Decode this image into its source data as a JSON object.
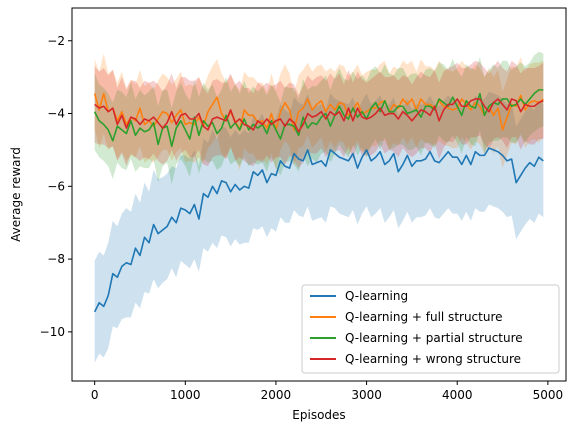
{
  "chart_data": {
    "type": "line",
    "title": "",
    "xlabel": "Episodes",
    "ylabel": "Average reward",
    "xlim": [
      -250,
      5200
    ],
    "ylim": [
      -11.35,
      -1.1
    ],
    "xticks": [
      0,
      1000,
      2000,
      3000,
      4000,
      5000
    ],
    "xtick_labels": [
      "0",
      "1000",
      "2000",
      "3000",
      "4000",
      "5000"
    ],
    "yticks": [
      -10,
      -8,
      -6,
      -4,
      -2
    ],
    "ytick_labels": [
      "−10",
      "−8",
      "−6",
      "−4",
      "−2"
    ],
    "grid": false,
    "legend_position": "lower-right",
    "x": [
      0,
      50,
      100,
      150,
      200,
      250,
      300,
      350,
      400,
      450,
      500,
      550,
      600,
      650,
      700,
      750,
      800,
      850,
      900,
      950,
      1000,
      1050,
      1100,
      1150,
      1200,
      1250,
      1300,
      1350,
      1400,
      1450,
      1500,
      1550,
      1600,
      1650,
      1700,
      1750,
      1800,
      1850,
      1900,
      1950,
      2000,
      2050,
      2100,
      2150,
      2200,
      2250,
      2300,
      2350,
      2400,
      2450,
      2500,
      2550,
      2600,
      2650,
      2700,
      2750,
      2800,
      2850,
      2900,
      2950,
      3000,
      3050,
      3100,
      3150,
      3200,
      3250,
      3300,
      3350,
      3400,
      3450,
      3500,
      3550,
      3600,
      3650,
      3700,
      3750,
      3800,
      3850,
      3900,
      3950,
      4000,
      4050,
      4100,
      4150,
      4200,
      4250,
      4300,
      4350,
      4400,
      4450,
      4500,
      4550,
      4600,
      4650,
      4700,
      4750,
      4800,
      4850,
      4900,
      4950
    ],
    "series": [
      {
        "name": "Q-learning",
        "color": "#1f77b4",
        "values": [
          -9.45,
          -9.2,
          -9.3,
          -9.0,
          -8.4,
          -8.5,
          -8.2,
          -8.1,
          -8.15,
          -7.7,
          -7.9,
          -7.4,
          -7.55,
          -7.05,
          -7.3,
          -7.2,
          -7.1,
          -6.85,
          -7.0,
          -6.6,
          -6.65,
          -6.75,
          -6.5,
          -6.9,
          -6.2,
          -6.3,
          -6.0,
          -6.2,
          -5.85,
          -5.9,
          -6.15,
          -5.95,
          -6.1,
          -6.0,
          -6.05,
          -5.6,
          -5.7,
          -5.55,
          -5.9,
          -5.65,
          -5.7,
          -5.3,
          -5.45,
          -5.5,
          -5.1,
          -5.25,
          -5.3,
          -5.0,
          -5.4,
          -5.35,
          -5.3,
          -5.45,
          -5.0,
          -5.1,
          -5.2,
          -5.25,
          -5.3,
          -5.1,
          -5.5,
          -5.2,
          -5.0,
          -5.3,
          -5.2,
          -5.05,
          -5.4,
          -5.3,
          -5.1,
          -5.6,
          -5.4,
          -5.15,
          -5.45,
          -5.3,
          -5.3,
          -5.25,
          -5.05,
          -5.3,
          -5.35,
          -5.2,
          -5.05,
          -5.2,
          -5.2,
          -5.4,
          -5.15,
          -5.4,
          -5.05,
          -5.15,
          -5.15,
          -4.95,
          -5.0,
          -5.05,
          -5.15,
          -5.3,
          -5.25,
          -5.9,
          -5.7,
          -5.5,
          -5.35,
          -5.45,
          -5.2,
          -5.3
        ],
        "band": [
          1.4,
          1.4,
          1.4,
          1.45,
          1.45,
          1.4,
          1.45,
          1.5,
          1.45,
          1.5,
          1.45,
          1.5,
          1.4,
          1.5,
          1.5,
          1.45,
          1.45,
          1.4,
          1.5,
          1.45,
          1.5,
          1.5,
          1.5,
          1.45,
          1.5,
          1.5,
          1.55,
          1.5,
          1.5,
          1.5,
          1.5,
          1.5,
          1.5,
          1.55,
          1.5,
          1.55,
          1.5,
          1.55,
          1.5,
          1.5,
          1.55,
          1.55,
          1.55,
          1.5,
          1.55,
          1.55,
          1.55,
          1.55,
          1.55,
          1.55,
          1.55,
          1.55,
          1.55,
          1.5,
          1.55,
          1.55,
          1.55,
          1.55,
          1.55,
          1.55,
          1.55,
          1.55,
          1.55,
          1.55,
          1.6,
          1.55,
          1.55,
          1.55,
          1.55,
          1.55,
          1.55,
          1.55,
          1.55,
          1.55,
          1.55,
          1.55,
          1.55,
          1.55,
          1.55,
          1.55,
          1.55,
          1.55,
          1.55,
          1.55,
          1.55,
          1.55,
          1.55,
          1.55,
          1.55,
          1.55,
          1.55,
          1.55,
          1.55,
          1.55,
          1.55,
          1.55,
          1.55,
          1.55,
          1.55,
          1.55
        ]
      },
      {
        "name": "Q-learning + full structure",
        "color": "#ff7f0e",
        "values": [
          -3.45,
          -3.9,
          -3.45,
          -3.95,
          -3.85,
          -4.2,
          -3.95,
          -4.3,
          -4.1,
          -4.2,
          -3.85,
          -4.3,
          -4.2,
          -4.35,
          -4.15,
          -3.95,
          -4.0,
          -4.25,
          -4.05,
          -3.9,
          -4.3,
          -4.25,
          -4.3,
          -4.1,
          -4.35,
          -3.95,
          -3.75,
          -3.55,
          -4.0,
          -4.2,
          -3.95,
          -4.2,
          -4.45,
          -3.9,
          -4.05,
          -4.05,
          -4.25,
          -4.2,
          -4.4,
          -4.0,
          -4.45,
          -3.95,
          -3.7,
          -3.9,
          -4.45,
          -3.95,
          -3.85,
          -3.6,
          -3.9,
          -3.75,
          -3.65,
          -3.95,
          -3.75,
          -3.9,
          -3.7,
          -3.75,
          -4.05,
          -3.9,
          -3.7,
          -4.0,
          -3.95,
          -3.85,
          -3.85,
          -3.7,
          -3.65,
          -3.95,
          -3.75,
          -3.85,
          -3.6,
          -3.75,
          -3.6,
          -3.9,
          -3.6,
          -3.75,
          -3.75,
          -3.85,
          -3.65,
          -3.8,
          -3.85,
          -3.9,
          -3.85,
          -3.6,
          -3.75,
          -3.9,
          -3.7,
          -3.8,
          -4.05,
          -3.8,
          -4.05,
          -3.85,
          -4.45,
          -4.1,
          -3.75,
          -3.8,
          -3.5,
          -3.9,
          -3.7,
          -3.65,
          -3.7,
          -3.6
        ],
        "band": [
          0.95,
          1.05,
          1.1,
          1.05,
          1.05,
          1.05,
          1.1,
          1.0,
          1.05,
          1.0,
          1.05,
          1.05,
          1.05,
          1.0,
          1.05,
          1.05,
          1.0,
          1.05,
          1.0,
          1.05,
          1.05,
          1.05,
          1.05,
          1.1,
          1.05,
          1.0,
          1.05,
          1.05,
          1.1,
          1.05,
          1.0,
          1.0,
          1.1,
          1.05,
          1.05,
          1.05,
          1.1,
          1.05,
          1.0,
          1.1,
          1.1,
          1.05,
          1.05,
          1.0,
          1.0,
          1.0,
          1.05,
          1.0,
          1.05,
          1.05,
          1.0,
          1.1,
          1.0,
          1.05,
          1.05,
          1.05,
          1.1,
          1.05,
          1.05,
          1.05,
          1.1,
          1.05,
          1.05,
          1.05,
          1.1,
          1.05,
          1.05,
          1.05,
          1.05,
          1.1,
          1.05,
          1.05,
          1.1,
          1.05,
          1.05,
          1.05,
          1.1,
          1.05,
          1.05,
          1.05,
          1.1,
          1.05,
          1.05,
          1.1,
          1.05,
          1.05,
          1.05,
          1.05,
          1.05,
          1.05,
          1.05,
          1.05,
          1.05,
          1.05,
          1.05,
          1.05,
          1.05,
          1.05,
          1.1,
          1.05
        ]
      },
      {
        "name": "Q-learning + partial structure",
        "color": "#2ca02c",
        "values": [
          -3.95,
          -4.2,
          -4.3,
          -4.45,
          -4.75,
          -4.35,
          -4.45,
          -4.55,
          -4.2,
          -4.6,
          -4.4,
          -4.5,
          -4.45,
          -4.25,
          -4.85,
          -4.4,
          -4.35,
          -4.9,
          -4.4,
          -4.2,
          -4.45,
          -4.7,
          -4.1,
          -4.6,
          -4.2,
          -4.35,
          -4.25,
          -4.55,
          -4.4,
          -4.05,
          -4.4,
          -4.25,
          -4.45,
          -4.15,
          -4.45,
          -4.3,
          -4.4,
          -4.3,
          -4.55,
          -4.2,
          -4.45,
          -4.7,
          -4.3,
          -4.3,
          -4.35,
          -4.6,
          -4.1,
          -4.4,
          -4.25,
          -4.3,
          -4.1,
          -4.0,
          -4.35,
          -4.05,
          -3.8,
          -4.05,
          -4.15,
          -3.85,
          -4.1,
          -3.95,
          -4.15,
          -3.85,
          -3.7,
          -3.95,
          -3.65,
          -3.95,
          -3.95,
          -3.8,
          -3.8,
          -4.0,
          -3.95,
          -3.9,
          -4.1,
          -3.8,
          -3.8,
          -3.9,
          -3.6,
          -3.7,
          -3.8,
          -3.55,
          -3.8,
          -4.05,
          -3.65,
          -3.8,
          -3.85,
          -3.45,
          -4.05,
          -3.8,
          -3.7,
          -3.75,
          -3.6,
          -3.6,
          -3.8,
          -3.75,
          -3.6,
          -3.75,
          -3.6,
          -3.45,
          -3.35,
          -3.35
        ],
        "band": [
          1.05,
          1.0,
          1.0,
          1.0,
          1.05,
          1.0,
          1.05,
          1.0,
          1.05,
          1.0,
          1.05,
          1.0,
          1.05,
          1.0,
          1.05,
          1.05,
          1.0,
          1.05,
          1.0,
          1.05,
          1.0,
          1.05,
          1.0,
          1.05,
          1.05,
          1.0,
          1.05,
          1.0,
          1.05,
          1.05,
          1.0,
          1.05,
          1.0,
          1.05,
          1.0,
          1.05,
          1.0,
          1.05,
          1.05,
          1.0,
          1.05,
          1.0,
          1.05,
          1.0,
          1.05,
          1.0,
          1.05,
          1.05,
          1.0,
          1.05,
          1.0,
          1.05,
          1.0,
          1.05,
          1.05,
          1.0,
          1.05,
          1.0,
          1.05,
          1.0,
          1.05,
          1.05,
          1.0,
          1.05,
          1.0,
          1.05,
          1.0,
          1.05,
          1.05,
          1.0,
          1.05,
          1.0,
          1.05,
          1.0,
          1.05,
          1.05,
          1.0,
          1.05,
          1.0,
          1.05,
          1.0,
          1.05,
          1.0,
          1.05,
          1.05,
          1.0,
          1.05,
          1.0,
          1.05,
          1.0,
          1.05,
          1.05,
          1.0,
          1.05,
          1.0,
          1.05,
          1.0,
          1.05,
          1.05,
          1.0
        ]
      },
      {
        "name": "Q-learning + wrong structure",
        "color": "#d62728",
        "values": [
          -3.75,
          -3.85,
          -3.8,
          -3.95,
          -3.85,
          -4.3,
          -4.05,
          -4.4,
          -4.1,
          -4.15,
          -4.3,
          -4.15,
          -4.2,
          -4.1,
          -4.25,
          -4.4,
          -4.25,
          -3.95,
          -4.3,
          -4.05,
          -4.0,
          -4.15,
          -4.15,
          -4.0,
          -4.35,
          -4.45,
          -4.15,
          -4.1,
          -4.15,
          -4.2,
          -3.9,
          -4.25,
          -4.15,
          -4.3,
          -4.35,
          -4.45,
          -4.2,
          -4.3,
          -4.15,
          -4.3,
          -4.2,
          -4.15,
          -4.35,
          -4.15,
          -4.25,
          -4.5,
          -4.3,
          -4.0,
          -4.1,
          -4.05,
          -3.95,
          -4.15,
          -3.95,
          -4.05,
          -3.95,
          -4.2,
          -3.85,
          -4.2,
          -3.85,
          -4.1,
          -4.15,
          -4.1,
          -4.0,
          -3.85,
          -4.05,
          -4.0,
          -4.0,
          -4.15,
          -3.95,
          -4.05,
          -4.2,
          -4.05,
          -3.9,
          -3.95,
          -4.05,
          -3.8,
          -4.2,
          -3.9,
          -3.75,
          -3.75,
          -3.6,
          -3.8,
          -3.8,
          -3.65,
          -3.6,
          -3.6,
          -3.8,
          -3.95,
          -3.7,
          -3.6,
          -3.75,
          -3.9,
          -3.6,
          -3.65,
          -3.95,
          -3.75,
          -3.8,
          -3.8,
          -3.7,
          -3.65
        ],
        "band": [
          1.05,
          1.0,
          1.05,
          1.0,
          1.05,
          1.0,
          1.05,
          1.05,
          1.0,
          1.05,
          1.0,
          1.05,
          1.05,
          1.0,
          1.05,
          1.0,
          1.05,
          1.05,
          1.0,
          1.05,
          1.0,
          1.05,
          1.05,
          1.0,
          1.05,
          1.0,
          1.05,
          1.05,
          1.0,
          1.05,
          1.0,
          1.05,
          1.05,
          1.0,
          1.05,
          1.0,
          1.05,
          1.05,
          1.0,
          1.05,
          1.0,
          1.05,
          1.05,
          1.0,
          1.05,
          1.0,
          1.05,
          1.05,
          1.0,
          1.05,
          1.0,
          1.05,
          1.05,
          1.0,
          1.05,
          1.0,
          1.05,
          1.05,
          1.0,
          1.05,
          1.0,
          1.05,
          1.05,
          1.0,
          1.05,
          1.0,
          1.05,
          1.05,
          1.0,
          1.05,
          1.0,
          1.05,
          1.05,
          1.0,
          1.05,
          1.0,
          1.05,
          1.05,
          1.0,
          1.05,
          1.0,
          1.05,
          1.05,
          1.0,
          1.05,
          1.0,
          1.05,
          1.05,
          1.0,
          1.05,
          1.0,
          1.05,
          1.05,
          1.0,
          1.05,
          1.0,
          1.05,
          1.05,
          1.0,
          1.05
        ]
      }
    ]
  }
}
